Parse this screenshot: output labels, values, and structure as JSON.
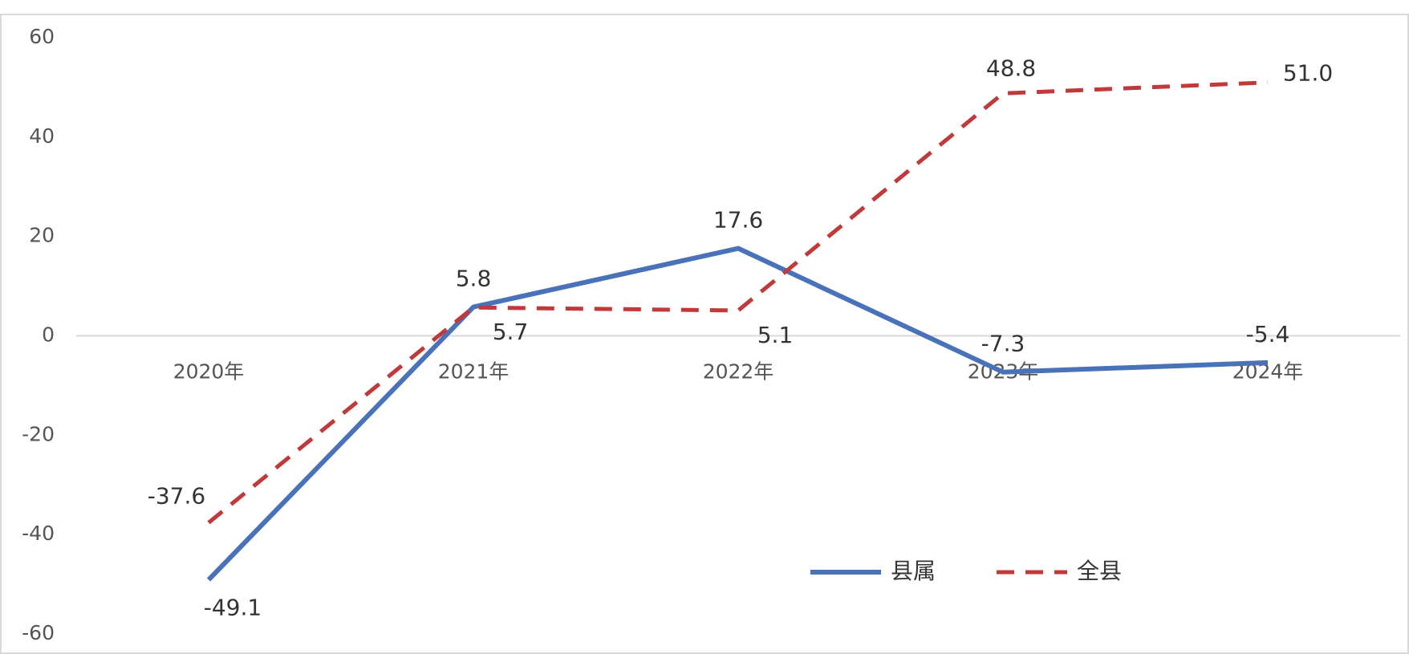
{
  "chart_data": {
    "type": "line",
    "categories": [
      "2020年",
      "2021年",
      "2022年",
      "2023年",
      "2024年"
    ],
    "series": [
      {
        "name": "县属",
        "color": "#4a72b8",
        "dash": false,
        "values": [
          -49.1,
          5.8,
          17.6,
          -7.3,
          -5.4
        ],
        "value_labels": [
          "-49.1",
          "5.8",
          "17.6",
          "-7.3",
          "-5.4"
        ]
      },
      {
        "name": "全县",
        "color": "#c0393b",
        "dash": true,
        "values": [
          -37.6,
          5.7,
          5.1,
          48.8,
          51
        ],
        "value_labels": [
          "-37.6",
          "5.7",
          "5.1",
          "48.8",
          "51.0"
        ]
      }
    ],
    "ylim": [
      -60,
      60
    ],
    "yticks": [
      60,
      40,
      20,
      0,
      -20,
      -40,
      -60
    ],
    "grid": false,
    "legend": "lower right"
  }
}
